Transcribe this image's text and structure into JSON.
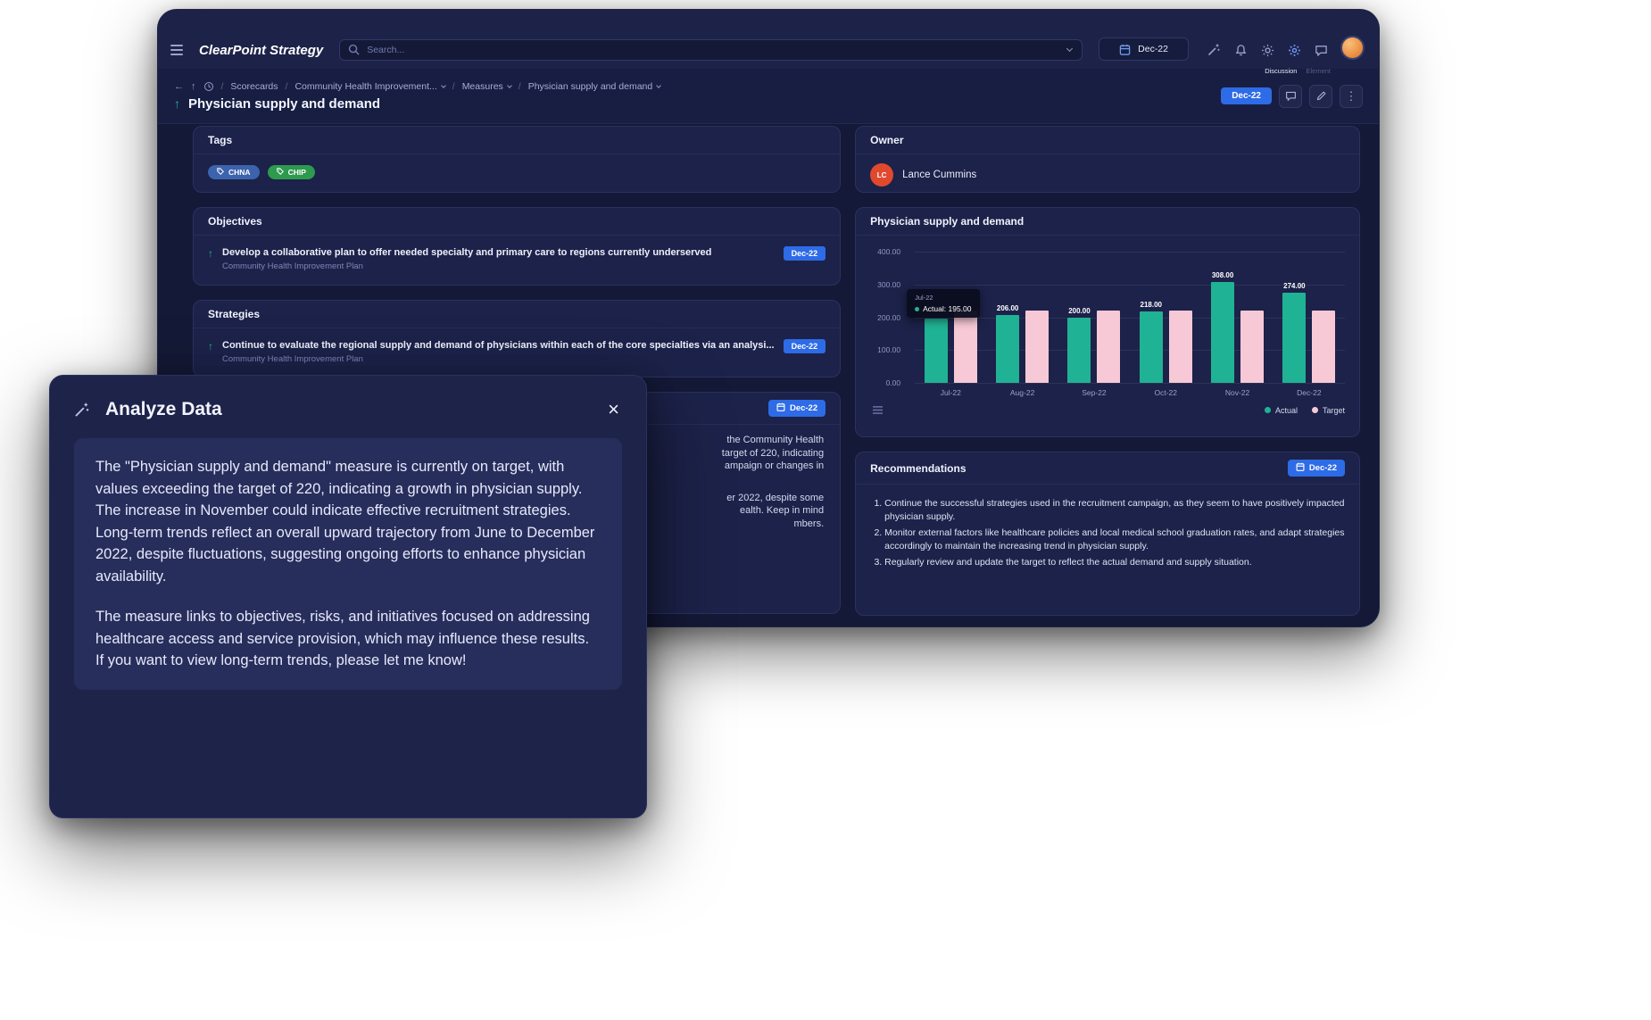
{
  "navbar": {
    "logo": "ClearPoint Strategy",
    "search_placeholder": "Search...",
    "date_button_label": "Dec-22",
    "discussion_label": "Discussion",
    "element_label": "Element"
  },
  "breadcrumb": {
    "items": [
      {
        "label": "Scorecards"
      },
      {
        "label": "Community Health Improvement..."
      },
      {
        "label": "Measures"
      },
      {
        "label": "Physician supply and demand"
      }
    ],
    "date_badge": "Dec-22"
  },
  "page_title": "Physician supply and demand",
  "tags_card": {
    "title": "Tags",
    "tags": [
      {
        "label": "CHNA",
        "color": "#3c63ad"
      },
      {
        "label": "CHIP",
        "color": "#2d9a4e"
      }
    ]
  },
  "owner_card": {
    "title": "Owner",
    "initials": "LC",
    "name": "Lance Cummins",
    "avatar_color": "#e0492e"
  },
  "objectives_card": {
    "title": "Objectives",
    "item": {
      "text": "Develop a collaborative plan to offer needed specialty and primary care to regions currently underserved",
      "subtitle": "Community Health Improvement Plan",
      "badge": "Dec-22"
    }
  },
  "strategies_card": {
    "title": "Strategies",
    "item": {
      "text": "Continue to evaluate the regional supply and demand of physicians within each of the core specialties via an analysi...",
      "subtitle": "Community Health Improvement Plan",
      "badge": "Dec-22"
    }
  },
  "analysis_card": {
    "badge": "Dec-22",
    "visible_text_fragments": [
      "the Community Health",
      "target of 220, indicating",
      "ampaign or changes in",
      "er 2022, despite some",
      "ealth. Keep in mind",
      "mbers."
    ]
  },
  "chart_card": {
    "title": "Physician supply and demand",
    "tooltip": {
      "period": "Jul-22",
      "text": "Actual: 195.00"
    },
    "chart_data": {
      "type": "bar",
      "title": "Physician supply and demand",
      "categories": [
        "Jul-22",
        "Aug-22",
        "Sep-22",
        "Oct-22",
        "Nov-22",
        "Dec-22"
      ],
      "series": [
        {
          "name": "Actual",
          "color": "#20b294",
          "values": [
            195,
            206,
            200,
            218,
            308,
            274
          ]
        },
        {
          "name": "Target",
          "color": "#f7c9d6",
          "values": [
            220,
            220,
            220,
            220,
            220,
            220
          ]
        }
      ],
      "data_labels": [
        null,
        "206.00",
        "200.00",
        "218.00",
        "308.00",
        "274.00"
      ],
      "ylim": [
        0,
        400
      ],
      "yticks": [
        "400.00",
        "300.00",
        "200.00",
        "100.00",
        "0.00"
      ],
      "legend_position": "bottom-right",
      "grid": true
    }
  },
  "recommendations_card": {
    "title": "Recommendations",
    "badge": "Dec-22",
    "items": [
      "Continue the successful strategies used in the recruitment campaign, as they seem to have positively impacted physician supply.",
      "Monitor external factors like healthcare policies and local medical school graduation rates, and adapt strategies accordingly to maintain the increasing trend in physician supply.",
      "Regularly review and update the target to reflect the actual demand and supply situation."
    ]
  },
  "modal": {
    "title": "Analyze Data",
    "paragraphs": [
      "The \"Physician supply and demand\" measure is currently on target, with values exceeding the target of 220, indicating a growth in physician supply. The increase in November could indicate effective recruitment strategies. Long-term trends reflect an overall upward trajectory from June to December 2022, despite fluctuations, suggesting ongoing efforts to enhance physician availability.",
      "The measure links to objectives, risks, and initiatives focused on addressing healthcare access and service provision, which may influence these results. If you want to view long-term trends, please let me know!"
    ]
  }
}
